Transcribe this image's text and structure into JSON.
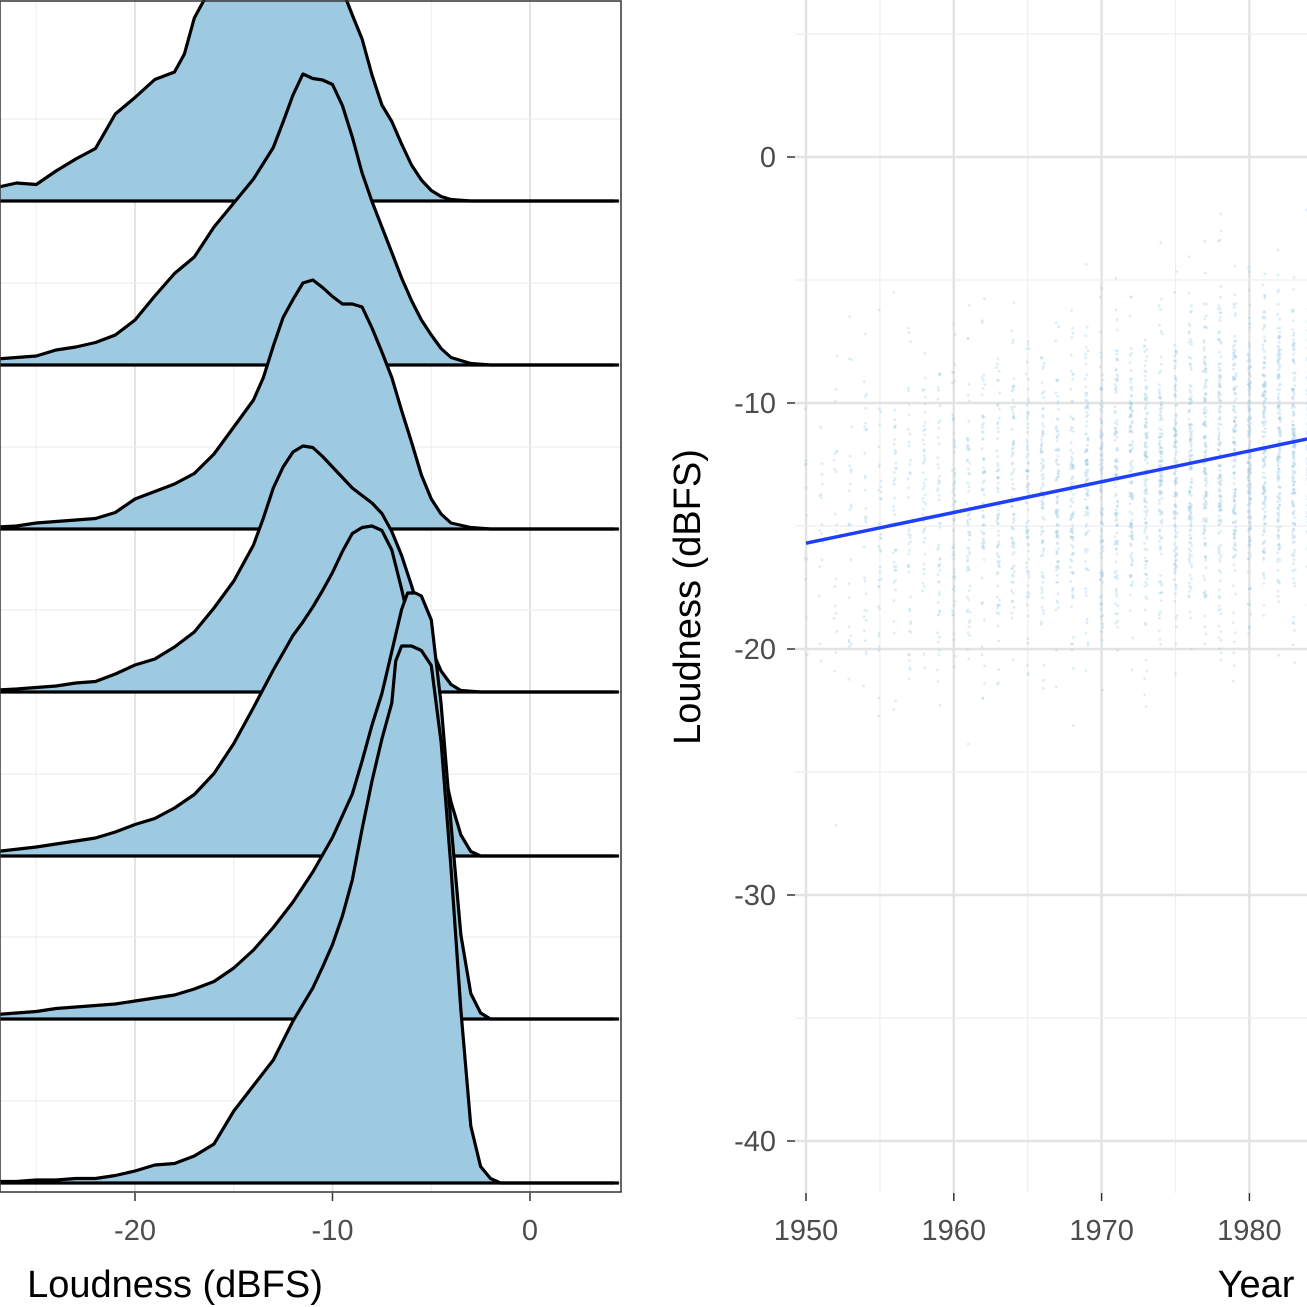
{
  "chart_data": [
    {
      "type": "area",
      "subtype": "ridgeline-density",
      "xlabel": "Loudness (dBFS)",
      "xlim": [
        -27.5,
        4.5
      ],
      "xticks": [
        -20,
        -10,
        0
      ],
      "fill_color": "#9ecae1",
      "line_color": "#000000",
      "grid": true,
      "series": [
        {
          "baseline_y": 201,
          "points": [
            [
              -27.5,
              0.07
            ],
            [
              -27,
              0.09
            ],
            [
              -26,
              0.12
            ],
            [
              -25,
              0.11
            ],
            [
              -24,
              0.2
            ],
            [
              -23,
              0.28
            ],
            [
              -22,
              0.35
            ],
            [
              -21,
              0.58
            ],
            [
              -20,
              0.69
            ],
            [
              -19,
              0.81
            ],
            [
              -18,
              0.86
            ],
            [
              -17.5,
              0.98
            ],
            [
              -17,
              1.22
            ],
            [
              -16.5,
              1.34
            ],
            [
              -16,
              1.46
            ],
            [
              -15.5,
              1.53
            ],
            [
              -15,
              1.68
            ],
            [
              -14.5,
              1.71
            ],
            [
              -14,
              1.79
            ],
            [
              -13.5,
              1.84
            ],
            [
              -13,
              1.93
            ],
            [
              -12.5,
              1.88
            ],
            [
              -12,
              1.8
            ],
            [
              -11.5,
              1.74
            ],
            [
              -11,
              1.68
            ],
            [
              -10.5,
              1.61
            ],
            [
              -10,
              1.52
            ],
            [
              -9.5,
              1.41
            ],
            [
              -9,
              1.24
            ],
            [
              -8.5,
              1.08
            ],
            [
              -8,
              0.84
            ],
            [
              -7.5,
              0.64
            ],
            [
              -7,
              0.53
            ],
            [
              -6.5,
              0.38
            ],
            [
              -6,
              0.24
            ],
            [
              -5.5,
              0.14
            ],
            [
              -5,
              0.07
            ],
            [
              -4.5,
              0.03
            ],
            [
              -4,
              0.01
            ],
            [
              -3,
              0
            ],
            [
              4.5,
              0
            ]
          ]
        },
        {
          "baseline_y": 365,
          "points": [
            [
              -27.5,
              0.03
            ],
            [
              -27,
              0.04
            ],
            [
              -25,
              0.06
            ],
            [
              -24,
              0.1
            ],
            [
              -23,
              0.12
            ],
            [
              -22,
              0.15
            ],
            [
              -21,
              0.2
            ],
            [
              -20,
              0.3
            ],
            [
              -19,
              0.46
            ],
            [
              -18,
              0.61
            ],
            [
              -17,
              0.72
            ],
            [
              -16,
              0.92
            ],
            [
              -15,
              1.08
            ],
            [
              -14,
              1.24
            ],
            [
              -13,
              1.45
            ],
            [
              -12.5,
              1.62
            ],
            [
              -12,
              1.8
            ],
            [
              -11.5,
              1.94
            ],
            [
              -11,
              1.91
            ],
            [
              -10.5,
              1.9
            ],
            [
              -10,
              1.87
            ],
            [
              -9.5,
              1.73
            ],
            [
              -9,
              1.52
            ],
            [
              -8.5,
              1.28
            ],
            [
              -8,
              1.09
            ],
            [
              -7.5,
              0.92
            ],
            [
              -7,
              0.75
            ],
            [
              -6.5,
              0.58
            ],
            [
              -6,
              0.43
            ],
            [
              -5.5,
              0.3
            ],
            [
              -5,
              0.2
            ],
            [
              -4.5,
              0.11
            ],
            [
              -4,
              0.05
            ],
            [
              -3,
              0.01
            ],
            [
              -2,
              0
            ],
            [
              4.5,
              0
            ]
          ]
        },
        {
          "baseline_y": 529,
          "points": [
            [
              -27.5,
              0.01
            ],
            [
              -26,
              0.02
            ],
            [
              -25,
              0.04
            ],
            [
              -24,
              0.05
            ],
            [
              -23,
              0.06
            ],
            [
              -22,
              0.07
            ],
            [
              -21,
              0.11
            ],
            [
              -20,
              0.2
            ],
            [
              -19,
              0.25
            ],
            [
              -18,
              0.3
            ],
            [
              -17,
              0.37
            ],
            [
              -16,
              0.5
            ],
            [
              -15,
              0.68
            ],
            [
              -14,
              0.86
            ],
            [
              -13.5,
              1.01
            ],
            [
              -13,
              1.22
            ],
            [
              -12.5,
              1.41
            ],
            [
              -12,
              1.53
            ],
            [
              -11.5,
              1.64
            ],
            [
              -11,
              1.66
            ],
            [
              -10.5,
              1.61
            ],
            [
              -10,
              1.55
            ],
            [
              -9.5,
              1.5
            ],
            [
              -9,
              1.5
            ],
            [
              -8.5,
              1.48
            ],
            [
              -8,
              1.34
            ],
            [
              -7.5,
              1.18
            ],
            [
              -7,
              1.01
            ],
            [
              -6.5,
              0.79
            ],
            [
              -6,
              0.58
            ],
            [
              -5.5,
              0.36
            ],
            [
              -5,
              0.2
            ],
            [
              -4.5,
              0.1
            ],
            [
              -4,
              0.04
            ],
            [
              -3,
              0.01
            ],
            [
              -2,
              0
            ],
            [
              4.5,
              0
            ]
          ]
        },
        {
          "baseline_y": 692,
          "points": [
            [
              -27.5,
              0.01
            ],
            [
              -26,
              0.02
            ],
            [
              -25,
              0.03
            ],
            [
              -24,
              0.04
            ],
            [
              -23,
              0.06
            ],
            [
              -22,
              0.07
            ],
            [
              -21,
              0.12
            ],
            [
              -20,
              0.18
            ],
            [
              -19,
              0.22
            ],
            [
              -18,
              0.3
            ],
            [
              -17,
              0.4
            ],
            [
              -16,
              0.56
            ],
            [
              -15,
              0.74
            ],
            [
              -14,
              0.98
            ],
            [
              -13.5,
              1.16
            ],
            [
              -13,
              1.36
            ],
            [
              -12.5,
              1.5
            ],
            [
              -12,
              1.6
            ],
            [
              -11.5,
              1.64
            ],
            [
              -11,
              1.63
            ],
            [
              -10.5,
              1.57
            ],
            [
              -10,
              1.5
            ],
            [
              -9.5,
              1.43
            ],
            [
              -9,
              1.36
            ],
            [
              -8.5,
              1.31
            ],
            [
              -8,
              1.26
            ],
            [
              -7.5,
              1.19
            ],
            [
              -7,
              1.07
            ],
            [
              -6.5,
              0.91
            ],
            [
              -6,
              0.71
            ],
            [
              -5.5,
              0.49
            ],
            [
              -5,
              0.29
            ],
            [
              -4.5,
              0.14
            ],
            [
              -4,
              0.05
            ],
            [
              -3.5,
              0.01
            ],
            [
              -2.5,
              0
            ],
            [
              4.5,
              0
            ]
          ]
        },
        {
          "baseline_y": 856,
          "points": [
            [
              -27.5,
              0.02
            ],
            [
              -27,
              0.03
            ],
            [
              -25,
              0.06
            ],
            [
              -24,
              0.08
            ],
            [
              -23,
              0.1
            ],
            [
              -22,
              0.12
            ],
            [
              -21,
              0.16
            ],
            [
              -20,
              0.21
            ],
            [
              -19,
              0.25
            ],
            [
              -18,
              0.32
            ],
            [
              -17,
              0.41
            ],
            [
              -16,
              0.55
            ],
            [
              -15,
              0.75
            ],
            [
              -14,
              0.99
            ],
            [
              -13,
              1.24
            ],
            [
              -12,
              1.47
            ],
            [
              -11.5,
              1.56
            ],
            [
              -11,
              1.66
            ],
            [
              -10.5,
              1.77
            ],
            [
              -10,
              1.89
            ],
            [
              -9.5,
              2.03
            ],
            [
              -9,
              2.15
            ],
            [
              -8.5,
              2.19
            ],
            [
              -8,
              2.2
            ],
            [
              -7.5,
              2.17
            ],
            [
              -7,
              2.04
            ],
            [
              -6.5,
              1.78
            ],
            [
              -6,
              1.49
            ],
            [
              -5.5,
              1.21
            ],
            [
              -5,
              0.94
            ],
            [
              -4.5,
              0.66
            ],
            [
              -4,
              0.36
            ],
            [
              -3.5,
              0.14
            ],
            [
              -3,
              0.03
            ],
            [
              -2.5,
              0
            ],
            [
              4.5,
              0
            ]
          ]
        },
        {
          "baseline_y": 1019,
          "points": [
            [
              -27.5,
              0.03
            ],
            [
              -27,
              0.03
            ],
            [
              -25,
              0.05
            ],
            [
              -24,
              0.07
            ],
            [
              -23,
              0.08
            ],
            [
              -22,
              0.09
            ],
            [
              -21,
              0.1
            ],
            [
              -20,
              0.12
            ],
            [
              -19,
              0.14
            ],
            [
              -18,
              0.16
            ],
            [
              -17,
              0.2
            ],
            [
              -16,
              0.25
            ],
            [
              -15,
              0.34
            ],
            [
              -14,
              0.46
            ],
            [
              -13,
              0.61
            ],
            [
              -12,
              0.78
            ],
            [
              -11,
              0.98
            ],
            [
              -10,
              1.21
            ],
            [
              -9,
              1.5
            ],
            [
              -8.5,
              1.72
            ],
            [
              -8,
              1.96
            ],
            [
              -7.5,
              2.17
            ],
            [
              -7,
              2.45
            ],
            [
              -6.5,
              2.73
            ],
            [
              -6.2,
              2.84
            ],
            [
              -5.8,
              2.84
            ],
            [
              -5.5,
              2.82
            ],
            [
              -5,
              2.66
            ],
            [
              -4.5,
              2.1
            ],
            [
              -4,
              1.3
            ],
            [
              -3.5,
              0.56
            ],
            [
              -3,
              0.17
            ],
            [
              -2.5,
              0.04
            ],
            [
              -2,
              0
            ],
            [
              4.5,
              0
            ]
          ]
        },
        {
          "baseline_y": 1183,
          "points": [
            [
              -27.5,
              0.01
            ],
            [
              -26,
              0.01
            ],
            [
              -25,
              0.02
            ],
            [
              -24,
              0.02
            ],
            [
              -23,
              0.03
            ],
            [
              -22,
              0.03
            ],
            [
              -21,
              0.05
            ],
            [
              -20,
              0.08
            ],
            [
              -19,
              0.12
            ],
            [
              -18,
              0.13
            ],
            [
              -17,
              0.18
            ],
            [
              -16,
              0.26
            ],
            [
              -15,
              0.48
            ],
            [
              -14,
              0.65
            ],
            [
              -13,
              0.82
            ],
            [
              -12,
              1.08
            ],
            [
              -11,
              1.3
            ],
            [
              -10.5,
              1.44
            ],
            [
              -10,
              1.59
            ],
            [
              -9.5,
              1.78
            ],
            [
              -9,
              2.02
            ],
            [
              -8.5,
              2.36
            ],
            [
              -8,
              2.68
            ],
            [
              -7.5,
              2.96
            ],
            [
              -7,
              3.2
            ],
            [
              -6.8,
              3.48
            ],
            [
              -6.5,
              3.58
            ],
            [
              -6,
              3.58
            ],
            [
              -5.5,
              3.55
            ],
            [
              -5,
              3.45
            ],
            [
              -4.5,
              2.94
            ],
            [
              -4,
              2.1
            ],
            [
              -3.5,
              1.15
            ],
            [
              -3,
              0.38
            ],
            [
              -2.5,
              0.11
            ],
            [
              -2,
              0.03
            ],
            [
              -1.5,
              0
            ],
            [
              4.5,
              0
            ]
          ]
        }
      ]
    },
    {
      "type": "scatter",
      "xlabel": "Year",
      "ylabel": "Loudness (dBFS)",
      "xlim": [
        1949.8,
        1986
      ],
      "ylim": [
        -42.1,
        5.2
      ],
      "xticks": [
        1950,
        1960,
        1970,
        1980
      ],
      "yticks": [
        0,
        -10,
        -20,
        -30,
        -40
      ],
      "point_color": "#9ecae1",
      "grid": true,
      "regression_line": {
        "color": "#1f3fff",
        "points": [
          [
            1950,
            -15.7
          ],
          [
            1986,
            -11.2
          ]
        ]
      }
    }
  ]
}
